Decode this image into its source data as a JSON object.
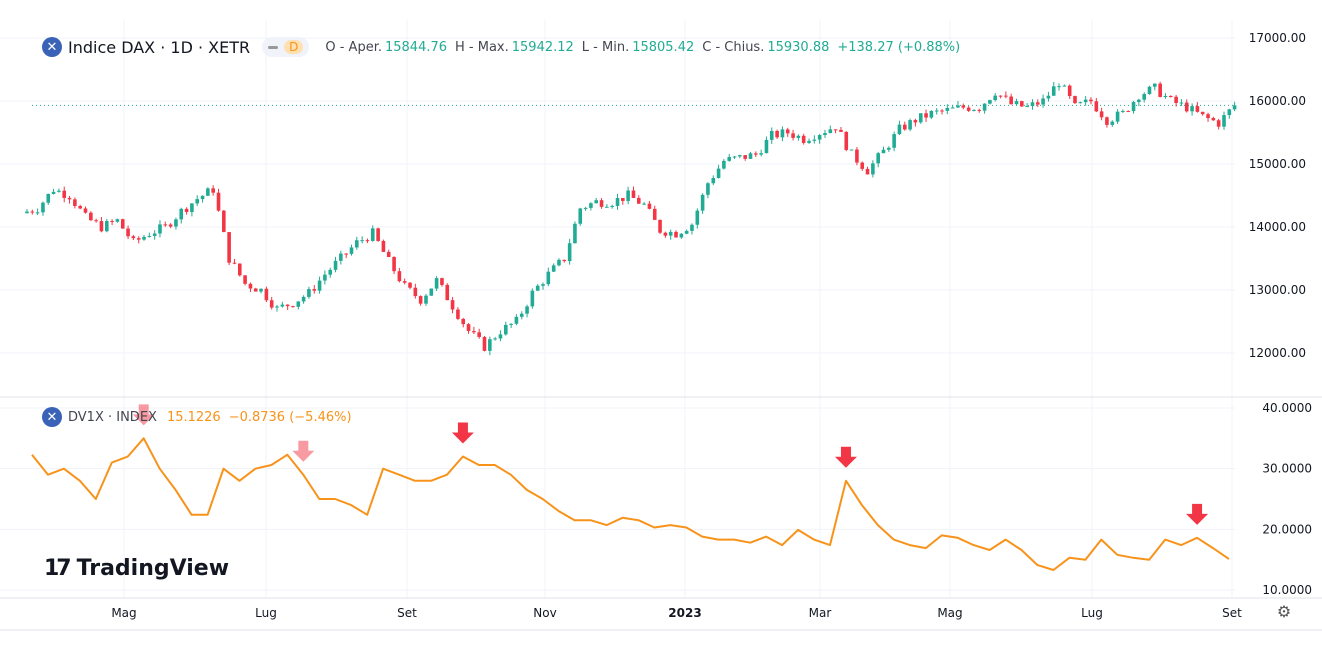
{
  "header": {
    "symbol_icon": "x-icon",
    "title": "Indice DAX · 1D · XETR",
    "interval_badge": "D",
    "open_label": "O - Aper.",
    "open": "15844.76",
    "high_label": "H - Max.",
    "high": "15942.12",
    "low_label": "L - Min.",
    "low": "15805.42",
    "close_label": "C - Chius.",
    "close": "15930.88",
    "change": "+138.27 (+0.88%)"
  },
  "indicator": {
    "title": "DV1X · INDEX",
    "value": "15.1226",
    "change": "−0.8736 (−5.46%)"
  },
  "branding": {
    "logo_text": "TradingView"
  },
  "colors": {
    "up": "#22ab94",
    "down": "#f23645",
    "line": "#f7931a",
    "arrow": "#f23645",
    "grid": "#f0f3fa"
  },
  "chart_data": [
    {
      "type": "candlestick",
      "series": [
        {
          "name": "Indice DAX",
          "interval": "1W (approx.)",
          "start": "2022-03-18",
          "close": [
            14300,
            14600,
            14500,
            14150,
            14000,
            14100,
            13750,
            13900,
            14000,
            14250,
            14450,
            14600,
            13500,
            13100,
            13000,
            12700,
            12800,
            12950,
            13250,
            13500,
            13750,
            13900,
            13450,
            13050,
            12850,
            13150,
            12750,
            12350,
            12100,
            12350,
            12500,
            12950,
            13250,
            13500,
            14300,
            14400,
            14400,
            14500,
            14350,
            13950,
            13900,
            14050,
            14700,
            15050,
            15100,
            15150,
            15450,
            15500,
            15400,
            15500,
            15600,
            15150,
            14900,
            15200,
            15550,
            15700,
            15800,
            15850,
            15900,
            15900,
            16150,
            15950,
            15900,
            16000,
            16300,
            15900,
            16000,
            15700,
            15800,
            16100,
            16200,
            16000,
            15900,
            15750,
            15650,
            15930
          ]
        }
      ],
      "last_price": 15930.88,
      "y_ticks": [
        "17000.00",
        "16000.00",
        "15000.00",
        "14000.00",
        "13000.00",
        "12000.00"
      ],
      "ylim": [
        11650,
        17000
      ]
    },
    {
      "type": "line",
      "series": [
        {
          "name": "DV1X · INDEX",
          "start": "2022-03-18",
          "values": [
            32.3,
            29,
            30,
            28,
            25,
            31,
            32,
            35,
            30,
            26.5,
            22.4,
            22.4,
            30,
            28,
            30,
            30.6,
            32.3,
            29,
            25,
            25,
            24,
            22.4,
            30,
            29,
            28,
            28,
            29,
            32,
            30.6,
            30.6,
            29,
            26.5,
            25,
            23,
            21.5,
            21.5,
            20.7,
            21.9,
            21.5,
            20.3,
            20.7,
            20.3,
            18.8,
            18.3,
            18.3,
            17.8,
            18.8,
            17.4,
            19.9,
            18.3,
            17.4,
            28,
            24,
            20.7,
            18.3,
            17.4,
            16.9,
            19,
            18.6,
            17.4,
            16.6,
            18.3,
            16.6,
            14.1,
            13.3,
            15.3,
            15,
            18.3,
            15.8,
            15.3,
            15,
            18.3,
            17.4,
            18.6,
            16.9,
            15.1
          ]
        }
      ],
      "arrow_markers": [
        {
          "index": 7,
          "faded": true
        },
        {
          "index": 17,
          "faded": true
        },
        {
          "index": 27,
          "faded": false
        },
        {
          "index": 51,
          "faded": false
        },
        {
          "index": 73,
          "faded": false
        }
      ],
      "y_ticks": [
        "40.0000",
        "30.0000",
        "20.0000",
        "10.0000"
      ],
      "ylim": [
        10,
        40
      ]
    }
  ],
  "x_axis": {
    "ticks": [
      "Mag",
      "Lug",
      "Set",
      "Nov",
      "2023",
      "Mar",
      "Mag",
      "Lug",
      "Set"
    ],
    "bold": [
      "2023"
    ]
  },
  "controls": {
    "settings_icon": "gear-icon"
  }
}
